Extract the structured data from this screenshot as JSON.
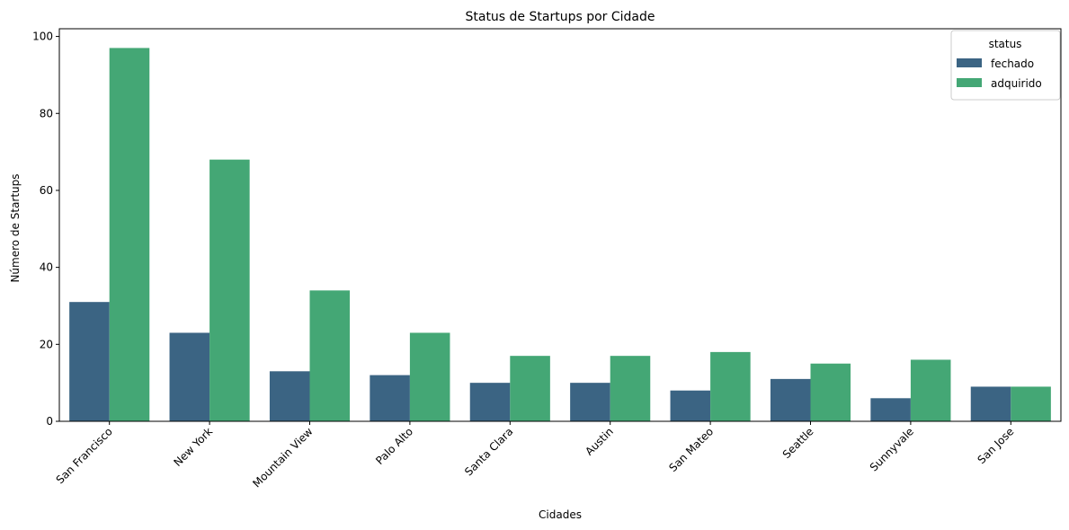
{
  "chart_data": {
    "type": "bar",
    "title": "Status de Startups por Cidade",
    "xlabel": "Cidades",
    "ylabel": "Número de Startups",
    "categories": [
      "San Francisco",
      "New York",
      "Mountain View",
      "Palo Alto",
      "Santa Clara",
      "Austin",
      "San Mateo",
      "Seattle",
      "Sunnyvale",
      "San Jose"
    ],
    "series": [
      {
        "name": "fechado",
        "values": [
          31,
          23,
          13,
          12,
          10,
          10,
          8,
          11,
          6,
          9
        ],
        "color": "#3b6483"
      },
      {
        "name": "adquirido",
        "values": [
          97,
          68,
          34,
          23,
          17,
          17,
          18,
          15,
          16,
          9
        ],
        "color": "#44a775"
      }
    ],
    "ylim": [
      0,
      102
    ],
    "yticks": [
      0,
      20,
      40,
      60,
      80,
      100
    ],
    "legend": {
      "title": "status",
      "placement": "top-right"
    },
    "grid": false
  }
}
